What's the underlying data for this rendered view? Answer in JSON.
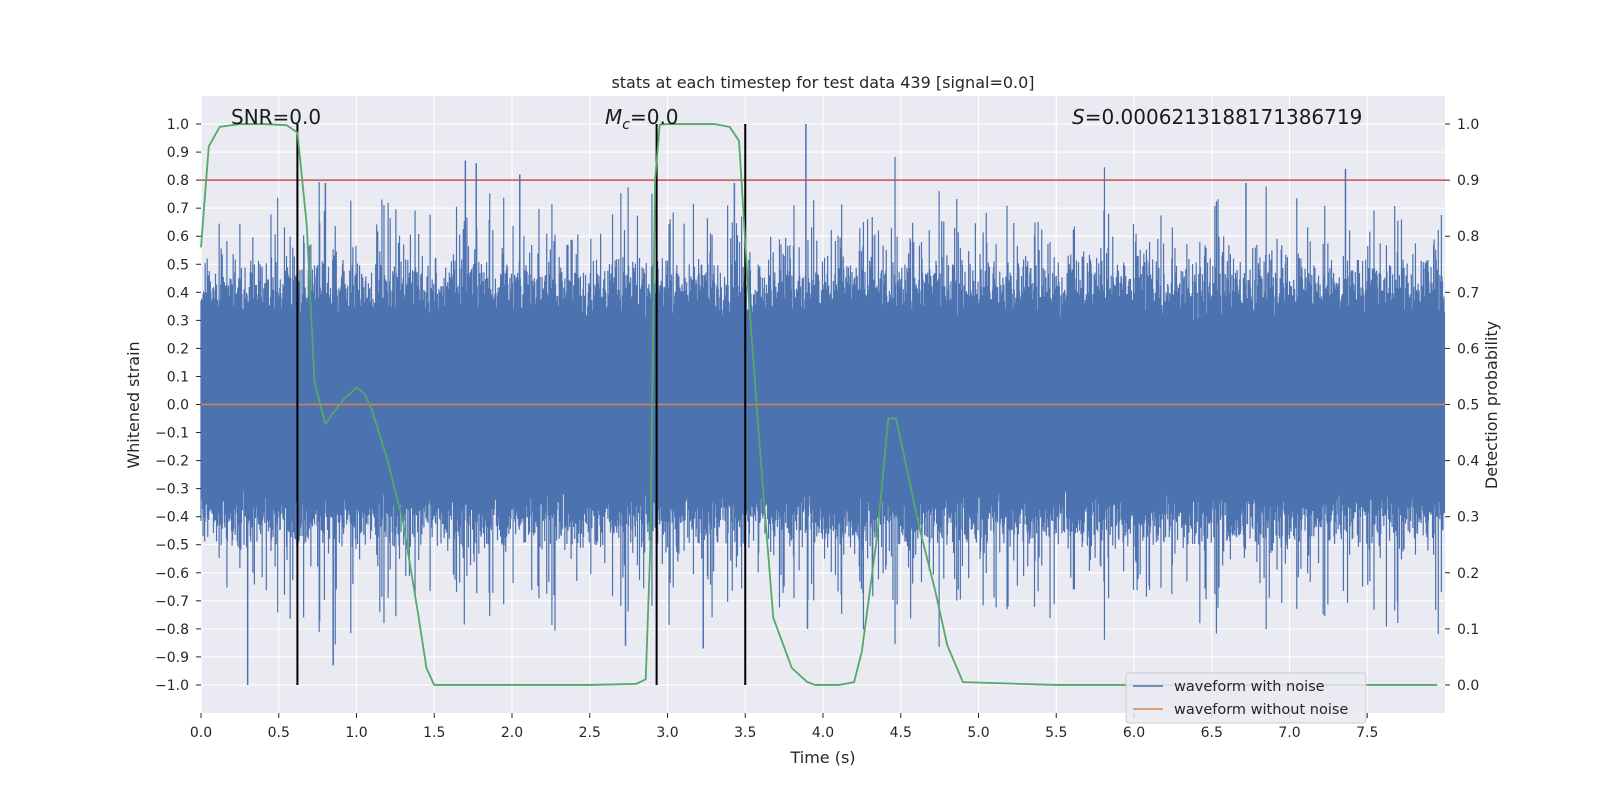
{
  "chart_data": {
    "type": "line",
    "title": "stats at each timestep for test data 439 [signal=0.0]",
    "xlabel": "Time (s)",
    "ylabel_left": "Whitened strain",
    "ylabel_right": "Detection probability",
    "xlim": [
      0,
      8.0
    ],
    "ylim_left": [
      -1.1,
      1.1
    ],
    "ylim_right": [
      -0.05,
      1.05
    ],
    "x_ticks": [
      0,
      0.5,
      1,
      1.5,
      2,
      2.5,
      3,
      3.5,
      4,
      4.5,
      5,
      5.5,
      6,
      6.5,
      7,
      7.5
    ],
    "x_tick_labels": [
      "0.0",
      "0.5",
      "1.0",
      "1.5",
      "2.0",
      "2.5",
      "3.0",
      "3.5",
      "4.0",
      "4.5",
      "5.0",
      "5.5",
      "6.0",
      "6.5",
      "7.0",
      "7.5"
    ],
    "y_left_ticks": [
      -1.0,
      -0.9,
      -0.8,
      -0.7,
      -0.6,
      -0.5,
      -0.4,
      -0.3,
      -0.2,
      -0.1,
      0.0,
      0.1,
      0.2,
      0.3,
      0.4,
      0.5,
      0.6,
      0.7,
      0.8,
      0.9,
      1.0
    ],
    "y_left_tick_labels": [
      "−1.0",
      "−0.9",
      "−0.8",
      "−0.7",
      "−0.6",
      "−0.5",
      "−0.4",
      "−0.3",
      "−0.2",
      "−0.1",
      "0.0",
      "0.1",
      "0.2",
      "0.3",
      "0.4",
      "0.5",
      "0.6",
      "0.7",
      "0.8",
      "0.9",
      "1.0"
    ],
    "y_right_ticks": [
      0.0,
      0.1,
      0.2,
      0.3,
      0.4,
      0.5,
      0.6,
      0.7,
      0.8,
      0.9,
      1.0
    ],
    "y_right_tick_labels": [
      "0.0",
      "0.1",
      "0.2",
      "0.3",
      "0.4",
      "0.5",
      "0.6",
      "0.7",
      "0.8",
      "0.9",
      "1.0"
    ],
    "annotations": {
      "snr": "SNR=0.0",
      "mc_symbol": "M",
      "mc_subscript": "c",
      "mc_value": "=0.0",
      "s_symbol": "S",
      "s_value": "=0.0006213188171386719"
    },
    "threshold_line": {
      "y_right": 0.9,
      "color": "#c44e52"
    },
    "vertical_lines_x": [
      0.62,
      2.93,
      3.5
    ],
    "vertical_lines_y_range": [
      -1.0,
      1.0
    ],
    "legend": {
      "position": "lower-right",
      "entries": [
        {
          "label": "waveform with noise",
          "color": "#4c72b0"
        },
        {
          "label": "waveform without noise",
          "color": "#dd8452"
        }
      ]
    },
    "series": [
      {
        "name": "waveform with noise",
        "axis": "left",
        "color": "#4c72b0",
        "style": "noise",
        "envelope": [
          0.35,
          0.47
        ],
        "spike_peaks": [
          {
            "x": 0.3,
            "y": -1.0
          },
          {
            "x": 0.62,
            "y": 0.48
          },
          {
            "x": 0.8,
            "y": 0.79
          },
          {
            "x": 0.85,
            "y": -0.93
          },
          {
            "x": 1.7,
            "y": 0.87
          },
          {
            "x": 1.77,
            "y": 0.86
          },
          {
            "x": 2.05,
            "y": 0.82
          },
          {
            "x": 2.73,
            "y": -0.86
          },
          {
            "x": 3.23,
            "y": -0.87
          },
          {
            "x": 3.43,
            "y": 0.79
          },
          {
            "x": 3.89,
            "y": 1.0
          },
          {
            "x": 3.9,
            "y": -0.8
          },
          {
            "x": 6.72,
            "y": 0.79
          },
          {
            "x": 7.36,
            "y": 0.84
          }
        ]
      },
      {
        "name": "waveform without noise",
        "axis": "left",
        "color": "#dd8452",
        "x": [
          0.0,
          8.0
        ],
        "y": [
          0.0,
          0.0
        ]
      },
      {
        "name": "detection probability",
        "axis": "right",
        "color": "#55a868",
        "x": [
          0.0,
          0.05,
          0.12,
          0.25,
          0.4,
          0.55,
          0.62,
          0.68,
          0.73,
          0.8,
          0.85,
          0.92,
          1.0,
          1.05,
          1.1,
          1.2,
          1.3,
          1.4,
          1.45,
          1.5,
          1.6,
          2.0,
          2.5,
          2.8,
          2.86,
          2.89,
          2.92,
          2.95,
          3.0,
          3.1,
          3.3,
          3.4,
          3.46,
          3.52,
          3.6,
          3.68,
          3.8,
          3.9,
          3.95,
          4.1,
          4.2,
          4.25,
          4.35,
          4.42,
          4.47,
          4.52,
          4.62,
          4.72,
          4.8,
          4.9,
          5.5,
          6.5,
          7.5,
          7.95
        ],
        "y": [
          0.78,
          0.96,
          0.995,
          1.0,
          1.0,
          0.998,
          0.985,
          0.82,
          0.54,
          0.465,
          0.485,
          0.51,
          0.53,
          0.52,
          0.49,
          0.4,
          0.29,
          0.12,
          0.03,
          0.0,
          0.0,
          0.0,
          0.0,
          0.002,
          0.01,
          0.25,
          0.9,
          0.999,
          1.0,
          1.0,
          1.0,
          0.995,
          0.97,
          0.7,
          0.4,
          0.12,
          0.03,
          0.005,
          0.0,
          0.0,
          0.005,
          0.06,
          0.27,
          0.475,
          0.475,
          0.41,
          0.28,
          0.17,
          0.07,
          0.005,
          0.0,
          0.0,
          0.0,
          0.0
        ]
      }
    ]
  }
}
